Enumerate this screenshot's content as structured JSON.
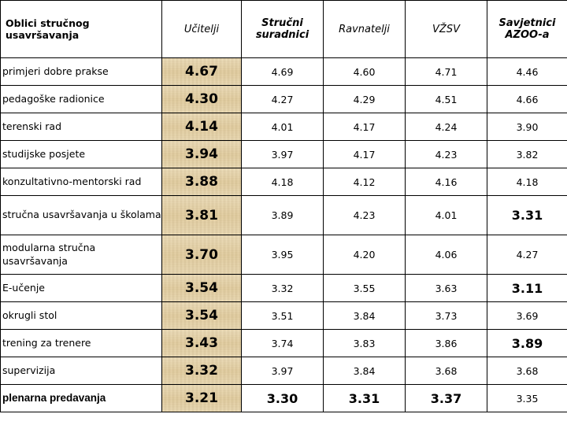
{
  "chart_data": {
    "type": "table",
    "columns": [
      "Oblici stručnog usavršavanja",
      "Učitelji",
      "Stručni suradnici",
      "Ravnatelji",
      "VŽSV",
      "Savjetnici AZOO-a"
    ],
    "rows": [
      {
        "label": "primjeri dobre prakse",
        "values": [
          "4.67",
          "4.69",
          "4.60",
          "4.71",
          "4.46"
        ]
      },
      {
        "label": "pedagoške radionice",
        "values": [
          "4.30",
          "4.27",
          "4.29",
          "4.51",
          "4.66"
        ]
      },
      {
        "label": "terenski rad",
        "values": [
          "4.14",
          "4.01",
          "4.17",
          "4.24",
          "3.90"
        ]
      },
      {
        "label": "studijske posjete",
        "values": [
          "3.94",
          "3.97",
          "4.17",
          "4.23",
          "3.82"
        ]
      },
      {
        "label": "konzultativno-mentorski rad",
        "values": [
          "3.88",
          "4.18",
          "4.12",
          "4.16",
          "4.18"
        ]
      },
      {
        "label": "stručna usavršavanja u školama",
        "values": [
          "3.81",
          "3.89",
          "4.23",
          "4.01",
          "3.31"
        ]
      },
      {
        "label": "modularna stručna usavršavanja",
        "values": [
          "3.70",
          "3.95",
          "4.20",
          "4.06",
          "4.27"
        ]
      },
      {
        "label": "E-učenje",
        "values": [
          "3.54",
          "3.32",
          "3.55",
          "3.63",
          "3.11"
        ]
      },
      {
        "label": "okrugli stol",
        "values": [
          "3.54",
          "3.51",
          "3.84",
          "3.73",
          "3.69"
        ]
      },
      {
        "label": "trening za trenere",
        "values": [
          "3.43",
          "3.74",
          "3.83",
          "3.86",
          "3.89"
        ]
      },
      {
        "label": "supervizija",
        "values": [
          "3.32",
          "3.97",
          "3.84",
          "3.68",
          "3.68"
        ]
      },
      {
        "label": "plenarna predavanja",
        "values": [
          "3.21",
          "3.30",
          "3.31",
          "3.37",
          "3.35"
        ]
      }
    ],
    "highlighted_cells": [
      {
        "row": 5,
        "col": 4
      },
      {
        "row": 7,
        "col": 4
      },
      {
        "row": 9,
        "col": 4
      },
      {
        "row": 11,
        "col": 1
      },
      {
        "row": 11,
        "col": 2
      },
      {
        "row": 11,
        "col": 3
      }
    ],
    "highlighted_row_labels": [
      11
    ],
    "colors": {
      "ucitelji_column_bg": "#e5d2a8",
      "border": "#000000"
    }
  }
}
